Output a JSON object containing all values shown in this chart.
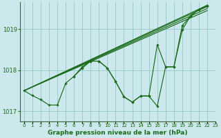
{
  "title": "Graphe pression niveau de la mer (hPa)",
  "bg_color": "#cce8ec",
  "grid_color": "#99cccc",
  "line_color": "#1a6b1a",
  "xlim": [
    -0.5,
    23
  ],
  "ylim": [
    1016.75,
    1019.65
  ],
  "yticks": [
    1017,
    1018,
    1019
  ],
  "xtick_labels": [
    "0",
    "1",
    "2",
    "3",
    "4",
    "5",
    "6",
    "7",
    "8",
    "9",
    "10",
    "11",
    "12",
    "13",
    "14",
    "15",
    "16",
    "17",
    "18",
    "19",
    "20",
    "21",
    "22",
    "23"
  ],
  "xticks": [
    0,
    1,
    2,
    3,
    4,
    5,
    6,
    7,
    8,
    9,
    10,
    11,
    12,
    13,
    14,
    15,
    16,
    17,
    18,
    19,
    20,
    21,
    22,
    23
  ],
  "jagged_x": [
    0,
    1,
    2,
    3,
    4,
    5,
    6,
    7,
    8,
    9,
    10,
    11,
    12,
    13,
    14,
    15,
    16,
    17,
    18,
    19,
    20,
    21,
    22
  ],
  "jagged_y": [
    1017.5,
    1017.38,
    1017.28,
    1017.15,
    1017.15,
    1017.68,
    1017.85,
    1018.05,
    1018.22,
    1018.22,
    1018.05,
    1017.72,
    1017.35,
    1017.22,
    1017.37,
    1017.37,
    1017.12,
    1018.08,
    1018.08,
    1018.98,
    1019.32,
    1019.48,
    1019.55
  ],
  "trend_lines": [
    {
      "x": [
        0,
        22
      ],
      "y": [
        1017.5,
        1019.45
      ]
    },
    {
      "x": [
        0,
        22
      ],
      "y": [
        1017.5,
        1019.5
      ]
    },
    {
      "x": [
        0,
        22
      ],
      "y": [
        1017.5,
        1019.55
      ]
    },
    {
      "x": [
        0,
        22
      ],
      "y": [
        1017.5,
        1019.58
      ]
    }
  ],
  "short_line_x": [
    6,
    7,
    8,
    9,
    10,
    11,
    12,
    13,
    14,
    15,
    16,
    17,
    18,
    19,
    20,
    21,
    22
  ],
  "short_line_y": [
    1017.85,
    1018.08,
    1018.22,
    1018.22,
    1018.05,
    1017.72,
    1017.35,
    1017.22,
    1017.37,
    1017.37,
    1018.62,
    1018.08,
    1018.08,
    1019.08,
    1019.32,
    1019.48,
    1019.58
  ]
}
